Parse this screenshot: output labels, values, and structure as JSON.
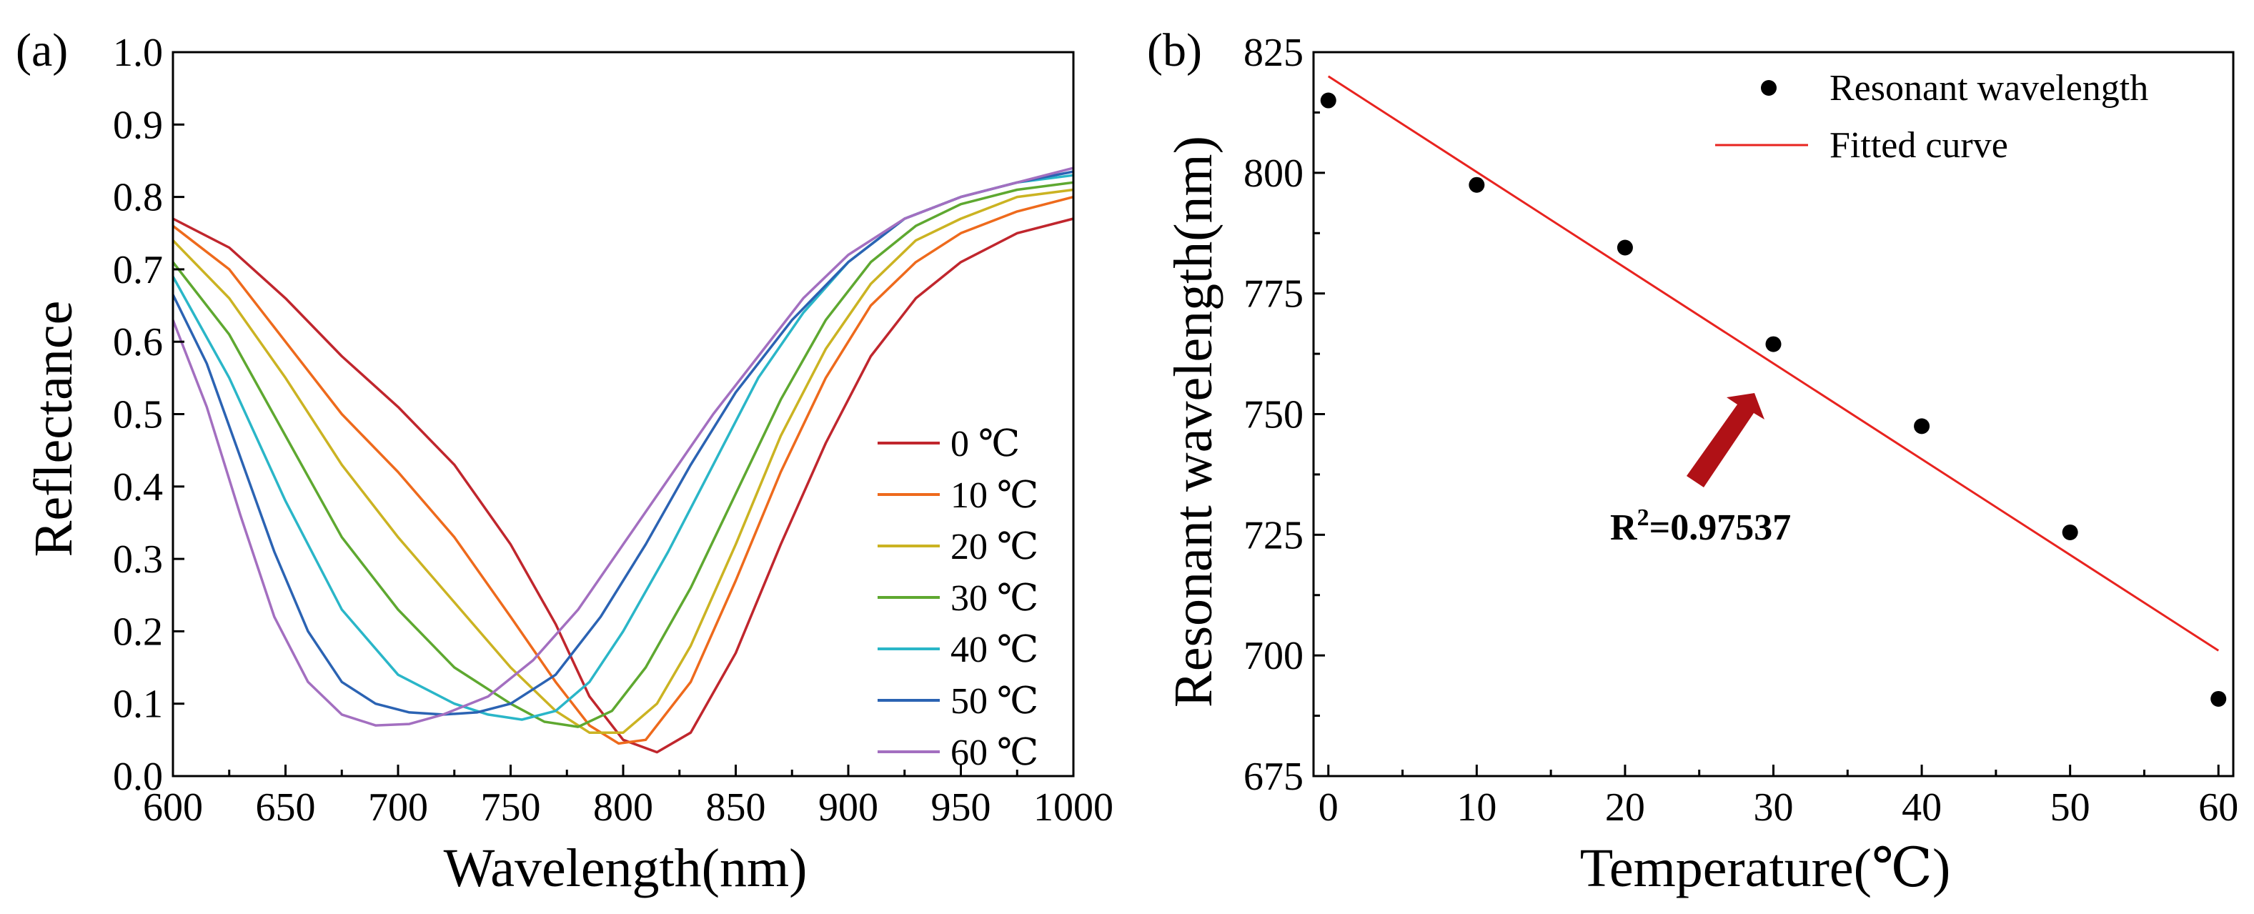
{
  "panels": {
    "a": {
      "label": "(a)"
    },
    "b": {
      "label": "(b)"
    }
  },
  "chart_data": [
    {
      "type": "line",
      "panel": "(a)",
      "title": "",
      "xlabel": "Wavelength(nm)",
      "ylabel": "Reflectance",
      "xlim": [
        600,
        1000
      ],
      "ylim": [
        0.0,
        1.0
      ],
      "xticks": [
        600,
        650,
        700,
        750,
        800,
        850,
        900,
        950,
        1000
      ],
      "xtick_labels": [
        "600",
        "650",
        "700",
        "750",
        "800",
        "850",
        "900",
        "950",
        "1000"
      ],
      "yticks": [
        0.0,
        0.1,
        0.2,
        0.3,
        0.4,
        0.5,
        0.6,
        0.7,
        0.8,
        0.9,
        1.0
      ],
      "ytick_labels": [
        "0.0",
        "0.1",
        "0.2",
        "0.3",
        "0.4",
        "0.5",
        "0.6",
        "0.7",
        "0.8",
        "0.9",
        "1.0"
      ],
      "legend_position": "right",
      "series": [
        {
          "name": "0 ℃",
          "color": "#c0262d",
          "x": [
            600,
            625,
            650,
            675,
            700,
            725,
            750,
            770,
            785,
            800,
            815,
            830,
            850,
            870,
            890,
            910,
            930,
            950,
            975,
            1000
          ],
          "y": [
            0.77,
            0.73,
            0.66,
            0.58,
            0.51,
            0.43,
            0.32,
            0.21,
            0.11,
            0.05,
            0.033,
            0.06,
            0.17,
            0.32,
            0.46,
            0.58,
            0.66,
            0.71,
            0.75,
            0.77
          ]
        },
        {
          "name": "10 ℃",
          "color": "#ee6a1c",
          "x": [
            600,
            625,
            650,
            675,
            700,
            725,
            750,
            770,
            785,
            798,
            810,
            830,
            850,
            870,
            890,
            910,
            930,
            950,
            975,
            1000
          ],
          "y": [
            0.76,
            0.7,
            0.6,
            0.5,
            0.42,
            0.33,
            0.22,
            0.13,
            0.07,
            0.045,
            0.05,
            0.13,
            0.27,
            0.42,
            0.55,
            0.65,
            0.71,
            0.75,
            0.78,
            0.8
          ]
        },
        {
          "name": "20 ℃",
          "color": "#cbb322",
          "x": [
            600,
            625,
            650,
            675,
            700,
            725,
            750,
            770,
            785,
            800,
            815,
            830,
            850,
            870,
            890,
            910,
            930,
            950,
            975,
            1000
          ],
          "y": [
            0.74,
            0.66,
            0.55,
            0.43,
            0.33,
            0.24,
            0.15,
            0.09,
            0.06,
            0.06,
            0.1,
            0.18,
            0.32,
            0.47,
            0.59,
            0.68,
            0.74,
            0.77,
            0.8,
            0.81
          ]
        },
        {
          "name": "30 ℃",
          "color": "#5ea830",
          "x": [
            600,
            625,
            650,
            675,
            700,
            725,
            750,
            765,
            780,
            795,
            810,
            830,
            850,
            870,
            890,
            910,
            930,
            950,
            975,
            1000
          ],
          "y": [
            0.71,
            0.61,
            0.47,
            0.33,
            0.23,
            0.15,
            0.1,
            0.075,
            0.068,
            0.09,
            0.15,
            0.26,
            0.39,
            0.52,
            0.63,
            0.71,
            0.76,
            0.79,
            0.81,
            0.82
          ]
        },
        {
          "name": "40 ℃",
          "color": "#2ab6c8",
          "x": [
            600,
            625,
            650,
            675,
            700,
            725,
            740,
            755,
            770,
            785,
            800,
            820,
            840,
            860,
            880,
            900,
            925,
            950,
            975,
            1000
          ],
          "y": [
            0.69,
            0.55,
            0.38,
            0.23,
            0.14,
            0.1,
            0.085,
            0.078,
            0.09,
            0.13,
            0.2,
            0.31,
            0.43,
            0.55,
            0.64,
            0.71,
            0.77,
            0.8,
            0.82,
            0.83
          ]
        },
        {
          "name": "50 ℃",
          "color": "#2b63b3",
          "x": [
            600,
            615,
            630,
            645,
            660,
            675,
            690,
            705,
            720,
            735,
            750,
            770,
            790,
            810,
            830,
            850,
            875,
            900,
            925,
            950,
            975,
            1000
          ],
          "y": [
            0.665,
            0.57,
            0.44,
            0.31,
            0.2,
            0.13,
            0.1,
            0.088,
            0.085,
            0.088,
            0.1,
            0.14,
            0.22,
            0.32,
            0.43,
            0.53,
            0.63,
            0.71,
            0.77,
            0.8,
            0.82,
            0.835
          ]
        },
        {
          "name": "60 ℃",
          "color": "#a36fc0",
          "x": [
            600,
            615,
            630,
            645,
            660,
            675,
            690,
            705,
            720,
            740,
            760,
            780,
            800,
            820,
            840,
            860,
            880,
            900,
            925,
            950,
            975,
            1000
          ],
          "y": [
            0.63,
            0.51,
            0.36,
            0.22,
            0.13,
            0.085,
            0.07,
            0.072,
            0.085,
            0.11,
            0.16,
            0.23,
            0.32,
            0.41,
            0.5,
            0.58,
            0.66,
            0.72,
            0.77,
            0.8,
            0.82,
            0.84
          ]
        }
      ]
    },
    {
      "type": "scatter",
      "panel": "(b)",
      "title": "",
      "xlabel": "Temperature(℃)",
      "ylabel": "Resonant wavelength(nm)",
      "xlim": [
        -1,
        61
      ],
      "ylim": [
        675,
        825
      ],
      "xticks": [
        0,
        10,
        20,
        30,
        40,
        50,
        60
      ],
      "xtick_labels": [
        "0",
        "10",
        "20",
        "30",
        "40",
        "50",
        "60"
      ],
      "yticks": [
        675,
        700,
        725,
        750,
        775,
        800,
        825
      ],
      "ytick_labels": [
        "675",
        "700",
        "725",
        "750",
        "775",
        "800",
        "825"
      ],
      "legend_position": "top-right",
      "series": [
        {
          "name": "Resonant wavelength",
          "kind": "scatter",
          "color": "#000000",
          "x": [
            0,
            10,
            20,
            30,
            40,
            50,
            60
          ],
          "y": [
            815,
            797.5,
            784.5,
            764.5,
            747.5,
            725.5,
            691
          ]
        },
        {
          "name": "Fitted curve",
          "kind": "line",
          "color": "#e8231f",
          "x": [
            0,
            60
          ],
          "y": [
            820,
            701
          ]
        }
      ],
      "annotation": {
        "text_main": "R",
        "text_sup": "2",
        "text_rest": "=0.97537",
        "arrow_color": "#b01116"
      }
    }
  ]
}
